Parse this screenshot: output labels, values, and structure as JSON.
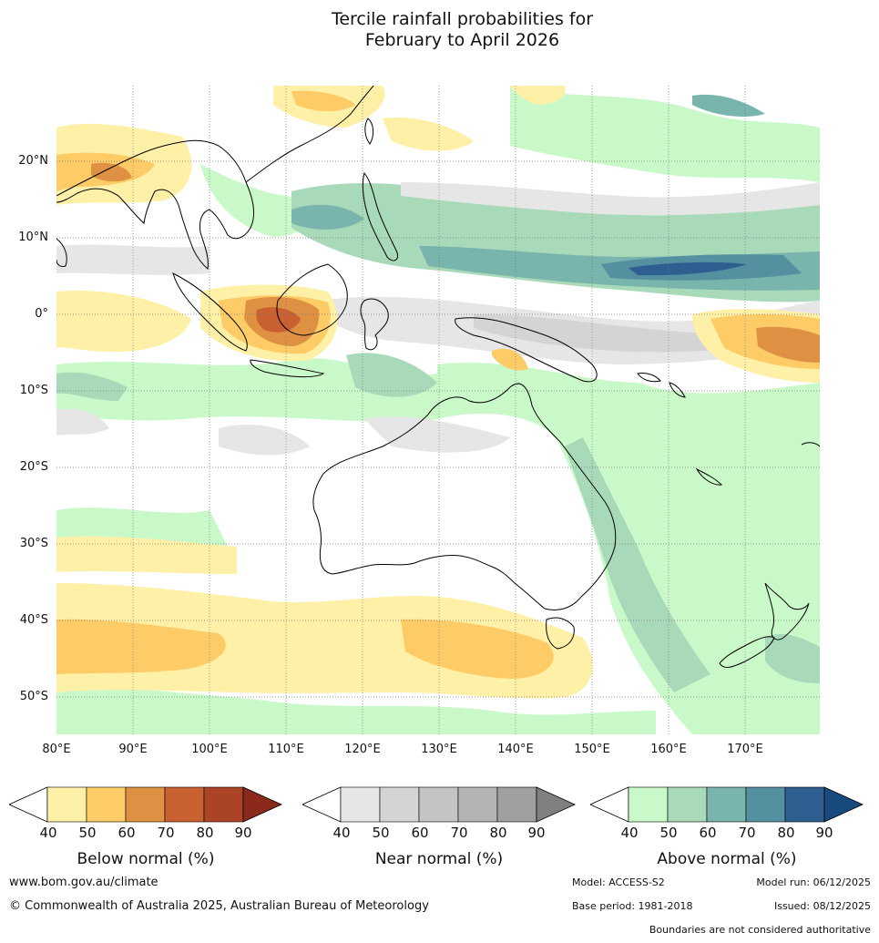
{
  "title": {
    "line1": "Tercile rainfall probabilities for",
    "line2": "February to April 2026"
  },
  "map": {
    "lat_labels": [
      "20°N",
      "10°N",
      "0°",
      "10°S",
      "20°S",
      "30°S",
      "40°S",
      "50°S"
    ],
    "lon_labels": [
      "80°E",
      "90°E",
      "100°E",
      "110°E",
      "120°E",
      "130°E",
      "140°E",
      "150°E",
      "160°E",
      "170°E"
    ],
    "colors": {
      "below": [
        "#fff0a8",
        "#fdcc66",
        "#df9143",
        "#c9602f",
        "#ab4427",
        "#8b2a1c"
      ],
      "near": [
        "#e6e6e6",
        "#d4d4d4",
        "#c4c4c4",
        "#b4b4b4",
        "#a0a0a0",
        "#808080"
      ],
      "above": [
        "#c9f9c9",
        "#a8d9b8",
        "#7ab5ad",
        "#5590a0",
        "#2f5f91",
        "#194a7f"
      ]
    }
  },
  "legend": {
    "ticks": [
      "40",
      "50",
      "60",
      "70",
      "80",
      "90"
    ],
    "below_label": "Below normal (%)",
    "near_label": "Near normal (%)",
    "above_label": "Above normal (%)"
  },
  "footer": {
    "website": "www.bom.gov.au/climate",
    "copyright": "© Commonwealth of Australia 2025, Australian Bureau of Meteorology",
    "model": "Model: ACCESS-S2",
    "model_run": "Model run: 06/12/2025",
    "base_period": "Base period: 1981-2018",
    "issued": "Issued: 08/12/2025",
    "disclaimer": "Boundaries are not considered authoritative"
  }
}
